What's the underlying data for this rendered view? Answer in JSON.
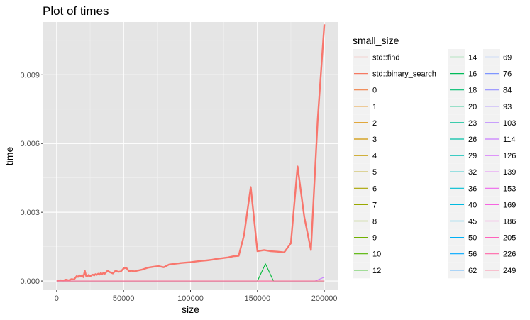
{
  "chart_data": {
    "type": "line",
    "title": "Plot of times",
    "xlabel": "size",
    "ylabel": "time",
    "xlim": [
      -10000,
      210000
    ],
    "ylim": [
      -0.0004,
      0.0113
    ],
    "x_ticks": [
      0,
      50000,
      100000,
      150000,
      200000
    ],
    "x_tick_labels": [
      "0",
      "50000",
      "100000",
      "150000",
      "200000"
    ],
    "y_ticks": [
      0,
      0.003,
      0.006,
      0.009
    ],
    "y_tick_labels": [
      "0.000",
      "0.003",
      "0.006",
      "0.009"
    ],
    "grid": true,
    "panel_background": "#E5E5E5",
    "legend": {
      "title": "small_size",
      "placement": "right",
      "entries": [
        {
          "label": "std::find",
          "color": "#F8766D"
        },
        {
          "label": "std::binary_search",
          "color": "#F57962"
        },
        {
          "label": "0",
          "color": "#EF7F46"
        },
        {
          "label": "1",
          "color": "#E58700"
        },
        {
          "label": "2",
          "color": "#DB8E00"
        },
        {
          "label": "3",
          "color": "#D09400"
        },
        {
          "label": "4",
          "color": "#C49A00"
        },
        {
          "label": "5",
          "color": "#B79F00"
        },
        {
          "label": "6",
          "color": "#A9A400"
        },
        {
          "label": "7",
          "color": "#99A800"
        },
        {
          "label": "8",
          "color": "#86AC00"
        },
        {
          "label": "9",
          "color": "#70B000"
        },
        {
          "label": "10",
          "color": "#53B400"
        },
        {
          "label": "12",
          "color": "#1AB700"
        },
        {
          "label": "14",
          "color": "#00BA38"
        },
        {
          "label": "16",
          "color": "#00BC59"
        },
        {
          "label": "18",
          "color": "#00BE6F"
        },
        {
          "label": "20",
          "color": "#00BF82"
        },
        {
          "label": "23",
          "color": "#00C094"
        },
        {
          "label": "26",
          "color": "#00C0A5"
        },
        {
          "label": "29",
          "color": "#00C0B5"
        },
        {
          "label": "32",
          "color": "#00BFC4"
        },
        {
          "label": "36",
          "color": "#00BDD2"
        },
        {
          "label": "40",
          "color": "#00BAE0"
        },
        {
          "label": "45",
          "color": "#00B6EB"
        },
        {
          "label": "50",
          "color": "#00B0F6"
        },
        {
          "label": "56",
          "color": "#00A9FF"
        },
        {
          "label": "62",
          "color": "#35A2FF"
        },
        {
          "label": "69",
          "color": "#619CFF"
        },
        {
          "label": "76",
          "color": "#7E96FF"
        },
        {
          "label": "84",
          "color": "#9590FF"
        },
        {
          "label": "93",
          "color": "#A98AFF"
        },
        {
          "label": "103",
          "color": "#BA83FF"
        },
        {
          "label": "114",
          "color": "#C97CFF"
        },
        {
          "label": "126",
          "color": "#D774FD"
        },
        {
          "label": "139",
          "color": "#E36CF6"
        },
        {
          "label": "153",
          "color": "#EE67EC"
        },
        {
          "label": "169",
          "color": "#F664E0"
        },
        {
          "label": "186",
          "color": "#FC61D5"
        },
        {
          "label": "205",
          "color": "#FF62BC"
        },
        {
          "label": "226",
          "color": "#FF66A8"
        },
        {
          "label": "249",
          "color": "#FF6C92"
        }
      ]
    },
    "series": [
      {
        "name": "std::find",
        "color": "#F8766D",
        "x": [
          0,
          3000,
          5000,
          7000,
          9000,
          11000,
          13000,
          15000,
          16000,
          17000,
          18000,
          19000,
          20000,
          21000,
          22000,
          23000,
          24000,
          25000,
          26000,
          27000,
          28000,
          29000,
          30000,
          31000,
          32000,
          33000,
          34000,
          35000,
          36000,
          38000,
          40000,
          42000,
          44000,
          46000,
          48000,
          50000,
          52000,
          54000,
          56000,
          58000,
          60000,
          64000,
          68000,
          72000,
          76000,
          80000,
          84000,
          88000,
          92000,
          96000,
          100000,
          104000,
          108000,
          112000,
          116000,
          120000,
          124000,
          128000,
          132000,
          136000,
          140000,
          145000,
          150000,
          155000,
          160000,
          165000,
          170000,
          175000,
          180000,
          185000,
          190000,
          195000,
          200000
        ],
        "y": [
          1e-05,
          3e-05,
          2e-05,
          6e-05,
          3e-05,
          8e-05,
          7e-05,
          0.00022,
          0.00018,
          0.00025,
          0.0002,
          0.00026,
          0.00017,
          0.00045,
          0.00022,
          0.0002,
          0.00027,
          0.0002,
          0.00025,
          0.00028,
          0.00024,
          0.0003,
          0.00027,
          0.00032,
          0.00028,
          0.00035,
          0.0003,
          0.00036,
          0.00032,
          0.00045,
          0.00038,
          0.00033,
          0.00045,
          0.0004,
          0.00042,
          0.00055,
          0.00058,
          0.00043,
          0.00045,
          0.00042,
          0.00045,
          0.0005,
          0.00058,
          0.00062,
          0.00065,
          0.0006,
          0.00072,
          0.00075,
          0.00078,
          0.0008,
          0.00082,
          0.00085,
          0.00088,
          0.0009,
          0.00093,
          0.00097,
          0.001,
          0.00103,
          0.00108,
          0.0011,
          0.002,
          0.0041,
          0.0013,
          0.00135,
          0.0013,
          0.00128,
          0.00125,
          0.00165,
          0.005,
          0.0028,
          0.00135,
          0.007,
          0.0112
        ]
      },
      {
        "name": "14",
        "color": "#00BA38",
        "x": [
          0,
          150000,
          156000,
          162000,
          200000
        ],
        "y": [
          0,
          0,
          0.00075,
          0,
          0
        ]
      },
      {
        "name": "114",
        "color": "#C97CFF",
        "x": [
          0,
          193000,
          200000
        ],
        "y": [
          0,
          0,
          0.00017
        ]
      },
      {
        "name": "249",
        "color": "#FF6C92",
        "x": [
          0,
          200000
        ],
        "y": [
          0,
          0
        ]
      }
    ]
  }
}
